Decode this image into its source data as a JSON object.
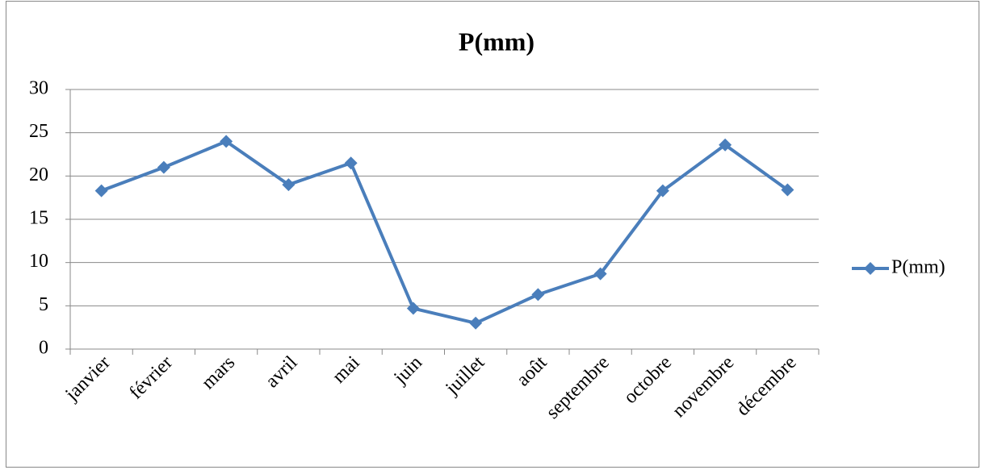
{
  "chart_data": {
    "type": "line",
    "title": "P(mm)",
    "categories": [
      "janvier",
      "février",
      "mars",
      "avril",
      "mai",
      "juin",
      "juillet",
      "août",
      "septembre",
      "octobre",
      "novembre",
      "décembre"
    ],
    "series": [
      {
        "name": "P(mm)",
        "color": "#4a7ebb",
        "values": [
          18.3,
          21,
          24,
          19,
          21.5,
          4.7,
          3,
          6.3,
          8.7,
          18.3,
          23.6,
          18.4
        ]
      }
    ],
    "ylim": [
      0,
      30
    ],
    "yticks": [
      0,
      5,
      10,
      15,
      20,
      25,
      30
    ],
    "grid": true,
    "legend": "right"
  }
}
